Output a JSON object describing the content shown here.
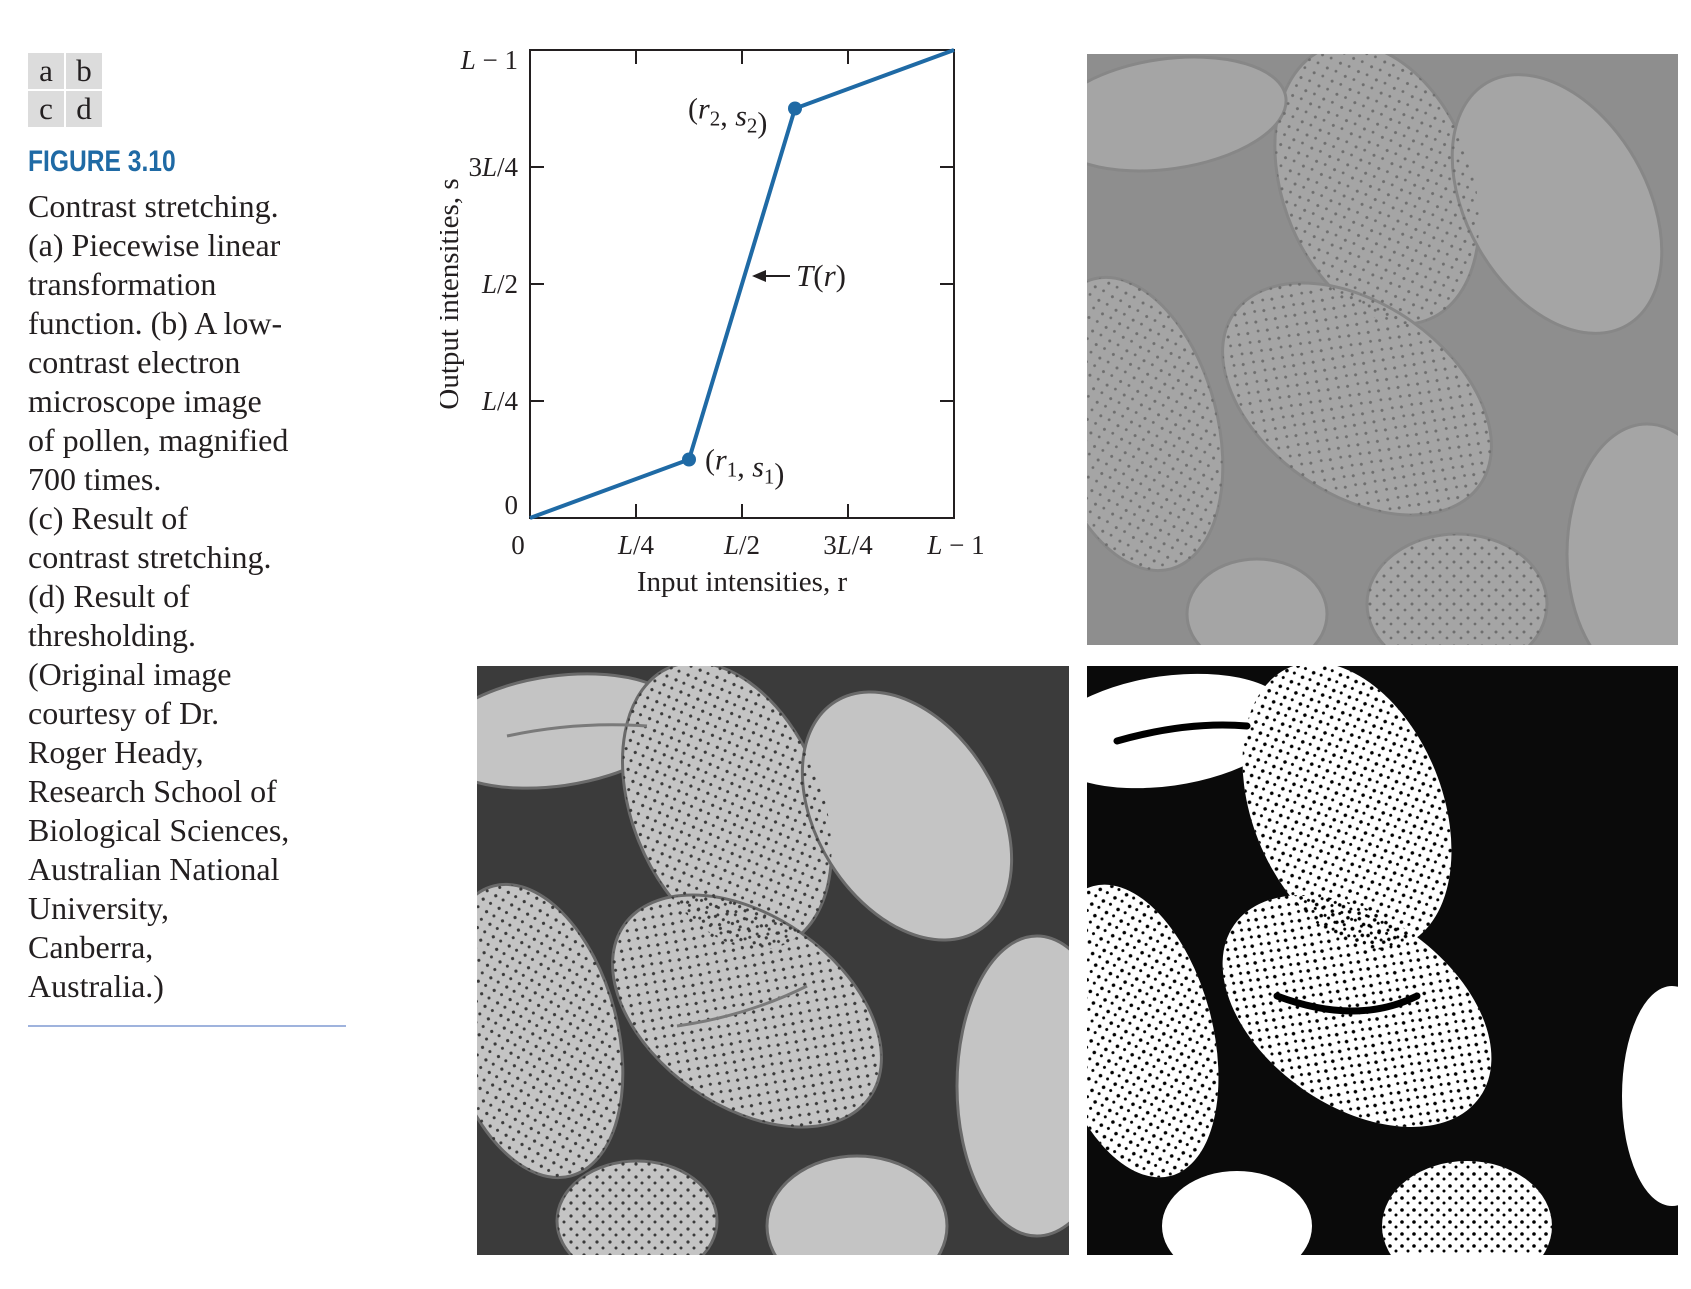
{
  "panel_key": [
    "a",
    "b",
    "c",
    "d"
  ],
  "figure": {
    "label": "FIGURE 3.10",
    "caption_lines": [
      "Contrast stretching.",
      "(a) Piecewise linear",
      "transformation",
      "function. (b) A low-",
      "contrast electron",
      "microscope image",
      "of pollen, magnified",
      "700 times.",
      "(c) Result of",
      "contrast stretching.",
      "(d) Result of",
      "thresholding.",
      "(Original image",
      "courtesy of Dr.",
      "Roger Heady,",
      "Research School of",
      "Biological Sciences,",
      "Australian National",
      "University,",
      "Canberra,",
      "Australia.)"
    ]
  },
  "chart_data": {
    "type": "line",
    "title": "",
    "xlabel": "Input intensities, r",
    "ylabel": "Output intensities, s",
    "x_ticks": [
      "0",
      "L/4",
      "L/2",
      "3L/4",
      "L − 1"
    ],
    "y_ticks": [
      "0",
      "L/4",
      "L/2",
      "3L/4",
      "L − 1"
    ],
    "xlim": [
      0,
      1
    ],
    "ylim": [
      0,
      1
    ],
    "series": [
      {
        "name": "T(r)",
        "color": "#1f6aa5",
        "x": [
          0,
          0.375,
          0.625,
          1.0
        ],
        "y": [
          0,
          0.125,
          0.875,
          1.0
        ]
      }
    ],
    "points": [
      {
        "label": "(r1, s1)",
        "x": 0.375,
        "y": 0.125
      },
      {
        "label": "(r2, s2)",
        "x": 0.625,
        "y": 0.875
      }
    ],
    "annotation": "T(r)",
    "grid": false
  },
  "colors": {
    "curve": "#1f6aa5",
    "figure_label": "#1f6aa5",
    "panel_key_bg": "#dcdcdc",
    "caption_rule": "#9fb3dd"
  },
  "images": {
    "b": "low-contrast pollen micrograph",
    "c": "contrast-stretched pollen micrograph",
    "d": "thresholded pollen micrograph"
  }
}
